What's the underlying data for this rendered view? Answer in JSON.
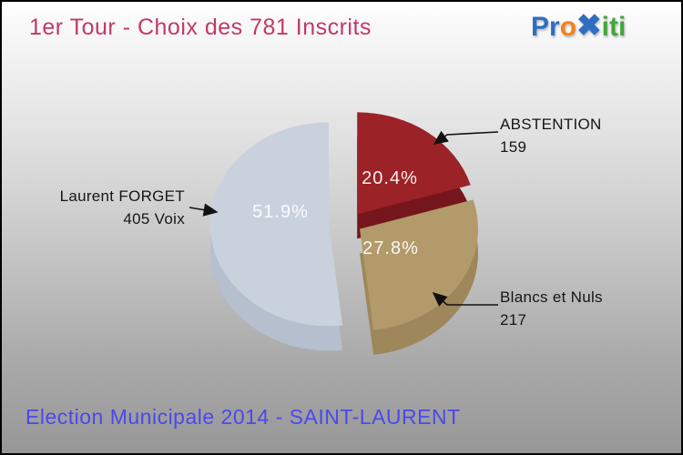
{
  "header": {
    "title": "1er Tour - Choix des 781 Inscrits",
    "title_color": "#c23a63"
  },
  "logo": {
    "name": "Proxiti",
    "part1": "Pr",
    "part2": "o",
    "part3": "x",
    "part4": "iti",
    "colors": {
      "blue": "#2e6fc1",
      "orange": "#f28220",
      "green": "#43a63c"
    }
  },
  "footer": {
    "title": "Election Municipale 2014 - SAINT-LAURENT",
    "color": "#4a49ee"
  },
  "chart_data": {
    "type": "pie",
    "style": "3d-exploded",
    "title": "1er Tour - Choix des 781 Inscrits",
    "total_inscrits": 781,
    "slices": [
      {
        "label": "ABSTENTION",
        "value": 159,
        "value_label": "159",
        "pct": 20.4,
        "pct_label": "20.4%",
        "color": "#9b2227",
        "side_color": "#74161b"
      },
      {
        "label": "Blancs et Nuls",
        "value": 217,
        "value_label": "217",
        "pct": 27.8,
        "pct_label": "27.8%",
        "color": "#b29a6b",
        "side_color": "#9d875b"
      },
      {
        "label": "Laurent FORGET",
        "value": 405,
        "value_label": "405 Voix",
        "pct": 51.9,
        "pct_label": "51.9%",
        "color": "#c8d1dc",
        "side_color": "#b5bfcd"
      }
    ],
    "legend_position": "callouts",
    "label_text_color": "#161616",
    "pct_text_color": "#ffffff"
  }
}
